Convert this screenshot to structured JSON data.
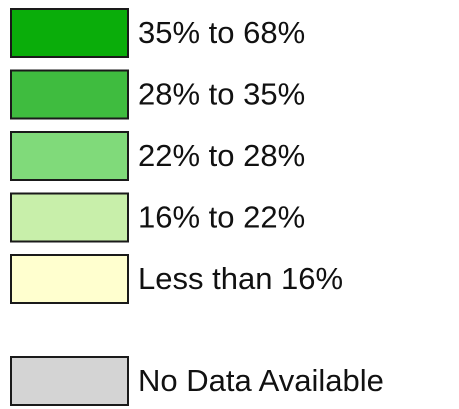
{
  "legend": {
    "items": [
      {
        "label": "35% to 68%",
        "color": "#0aad0a"
      },
      {
        "label": "28% to 35%",
        "color": "#3fbc3f"
      },
      {
        "label": "22% to 28%",
        "color": "#80da7a"
      },
      {
        "label": "16% to 22%",
        "color": "#c8efaa"
      },
      {
        "label": "Less than 16%",
        "color": "#ffffcf"
      }
    ],
    "no_data": {
      "label": "No Data Available",
      "color": "#d4d4d4"
    }
  }
}
